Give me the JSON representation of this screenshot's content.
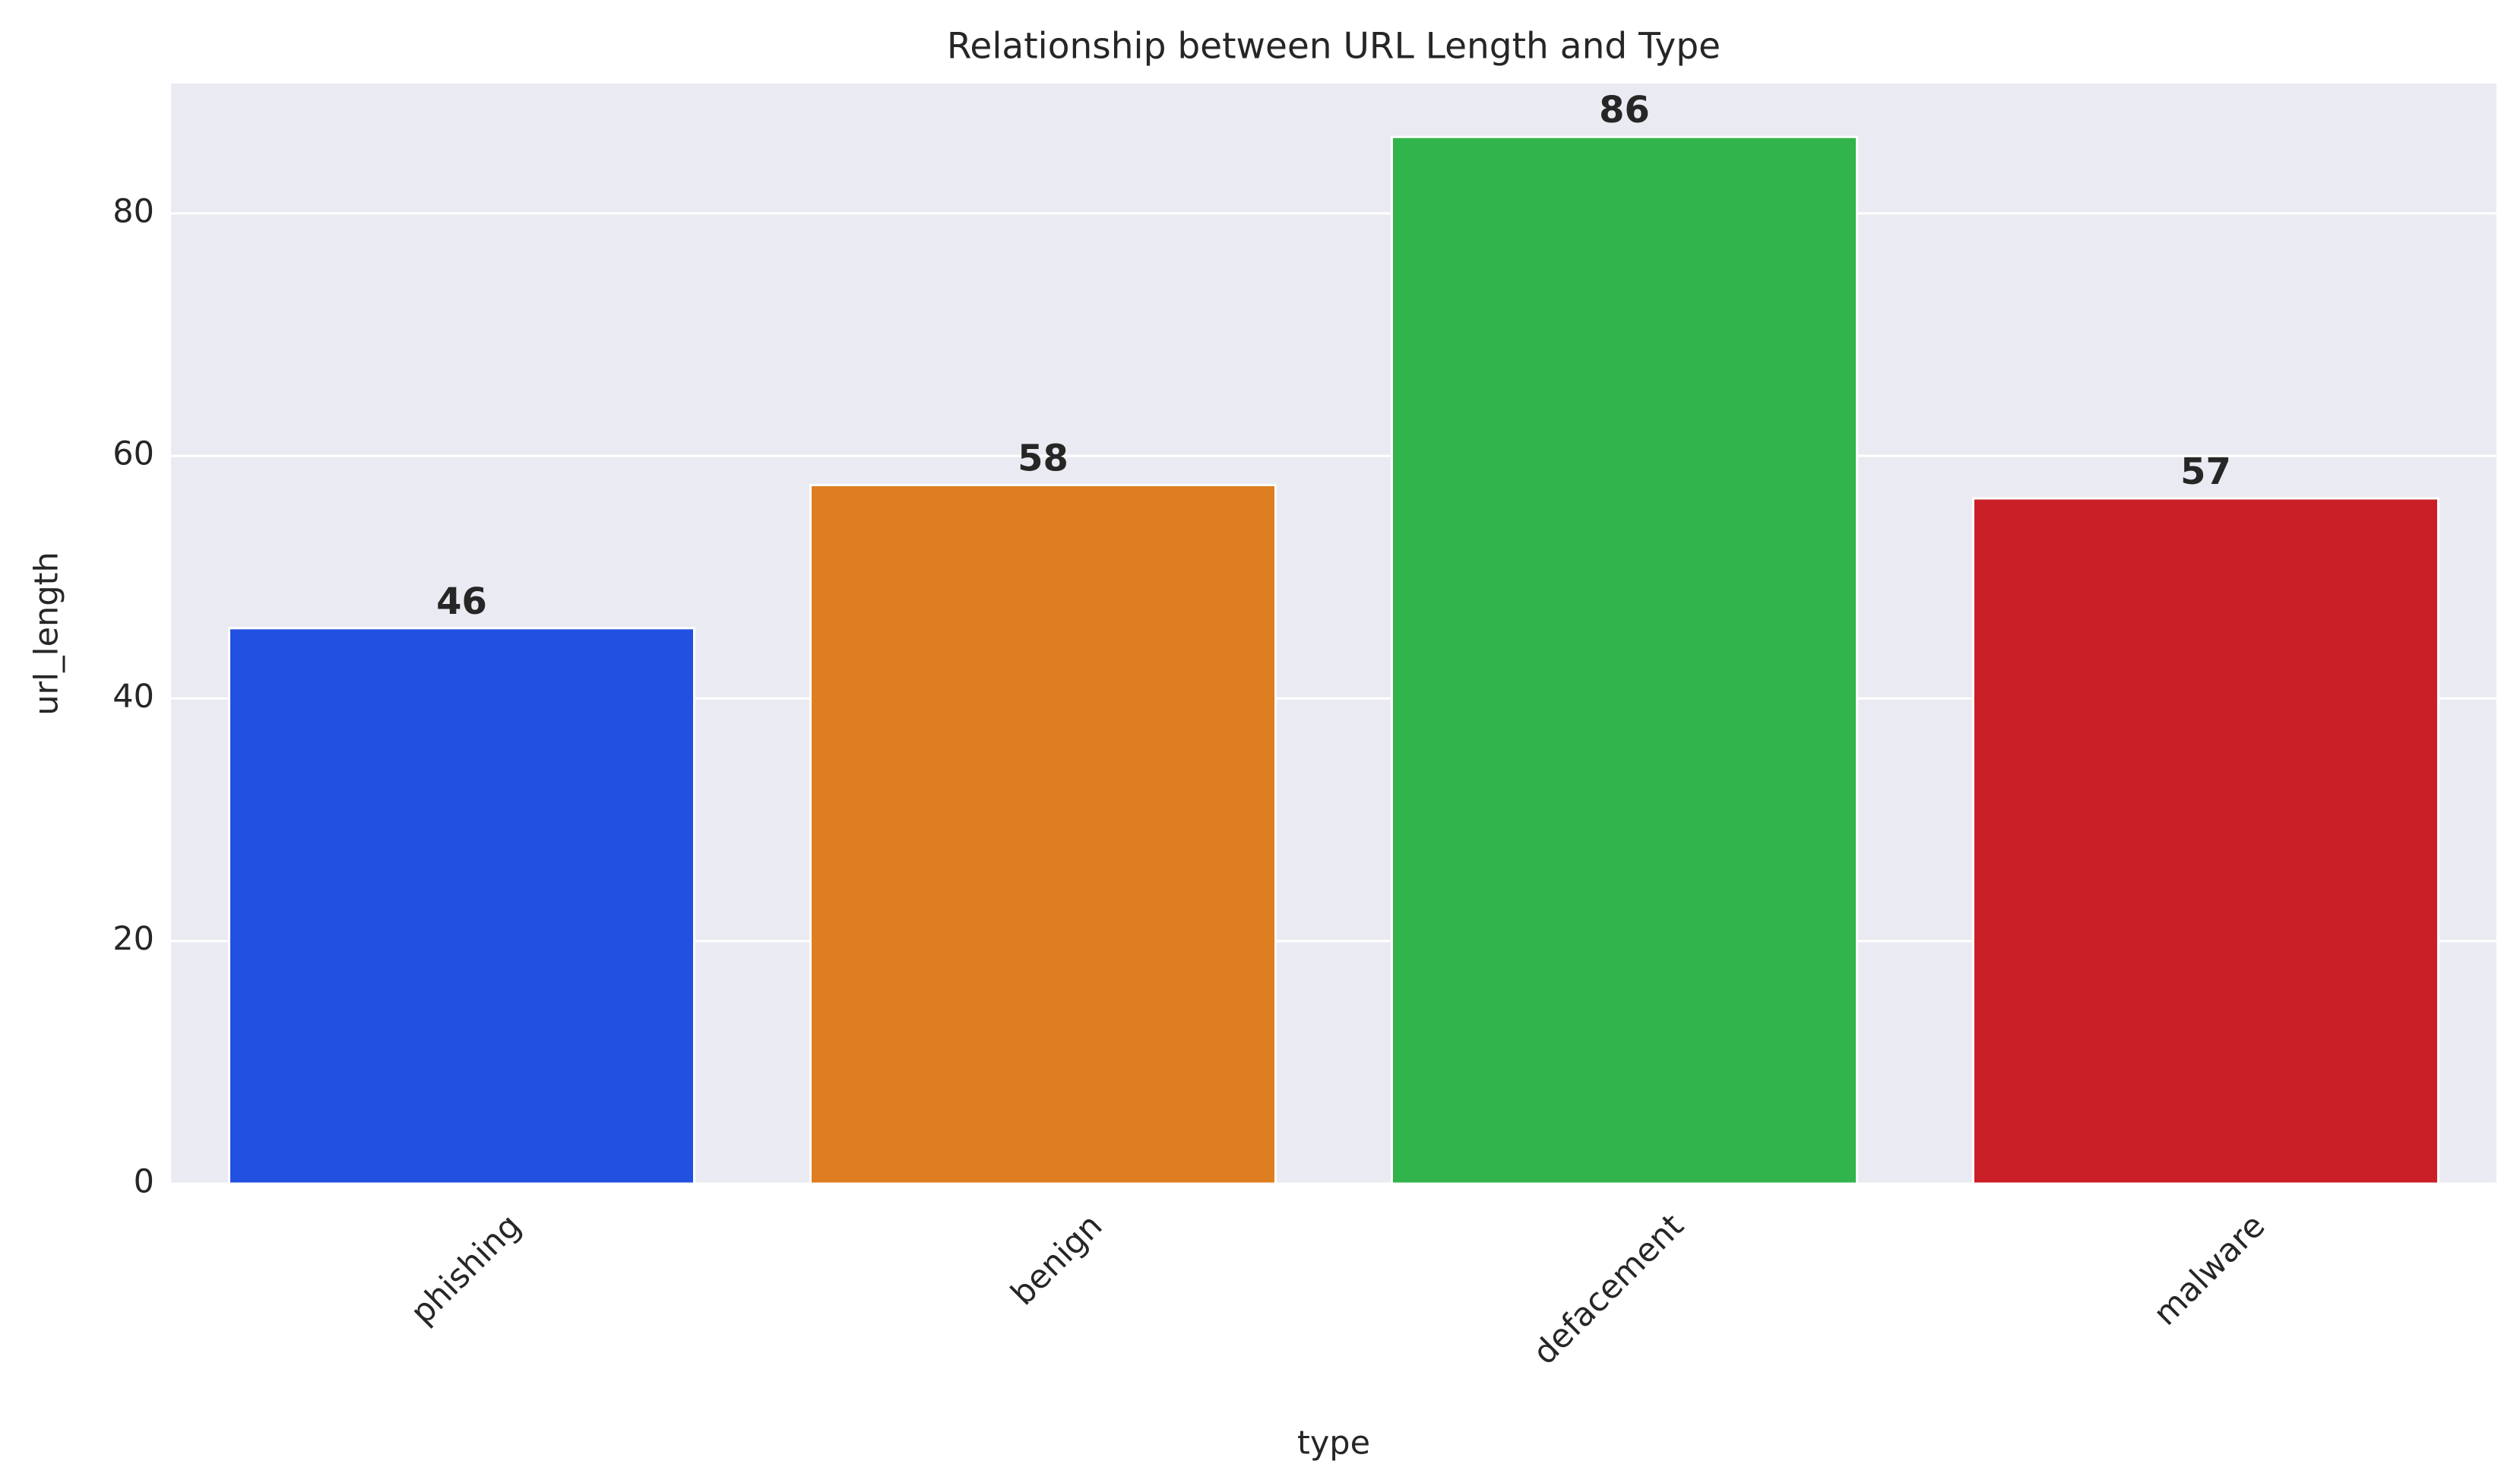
{
  "chart_data": {
    "type": "bar",
    "title": "Relationship between URL Length and Type",
    "xlabel": "type",
    "ylabel": "url_length",
    "categories": [
      "phishing",
      "benign",
      "defacement",
      "malware"
    ],
    "values": [
      45.8,
      57.6,
      86.3,
      56.5
    ],
    "value_labels": [
      "46",
      "58",
      "86",
      "57"
    ],
    "colors": [
      "#2250e0",
      "#df7d21",
      "#31b44b",
      "#cb1f27"
    ],
    "ylim": [
      0,
      90.7
    ],
    "yticks": [
      0,
      20,
      40,
      60,
      80
    ],
    "grid": true
  }
}
